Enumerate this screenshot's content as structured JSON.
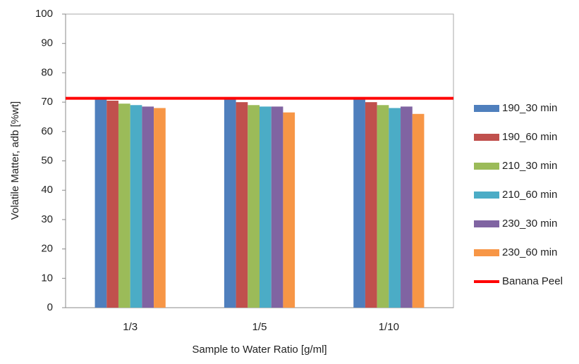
{
  "chart_data": {
    "type": "bar",
    "y_label": "Volatile Matter, adb [%wt]",
    "x_label": "Sample to Water Ratio [g/ml]",
    "categories": [
      "1/3",
      "1/5",
      "1/10"
    ],
    "series": [
      {
        "name": "190_30 min",
        "color": "#4f7fbd",
        "values": [
          71,
          71,
          71
        ]
      },
      {
        "name": "190_60 min",
        "color": "#c0504d",
        "values": [
          70.5,
          70,
          70
        ]
      },
      {
        "name": "210_30 min",
        "color": "#9bbb59",
        "values": [
          69.5,
          69,
          69
        ]
      },
      {
        "name": "210_60 min",
        "color": "#4bacc6",
        "values": [
          69,
          68.5,
          68
        ]
      },
      {
        "name": "230_30 min",
        "color": "#8064a2",
        "values": [
          68.5,
          68.5,
          68.5
        ]
      },
      {
        "name": "230_60 min",
        "color": "#f79646",
        "values": [
          68,
          66.5,
          66
        ]
      }
    ],
    "reference": {
      "name": "Banana Peel",
      "color": "#ff0000",
      "value": 71.3
    },
    "ylim": [
      0,
      100
    ],
    "yticks": [
      0,
      10,
      20,
      30,
      40,
      50,
      60,
      70,
      80,
      90,
      100
    ],
    "grid": false
  }
}
